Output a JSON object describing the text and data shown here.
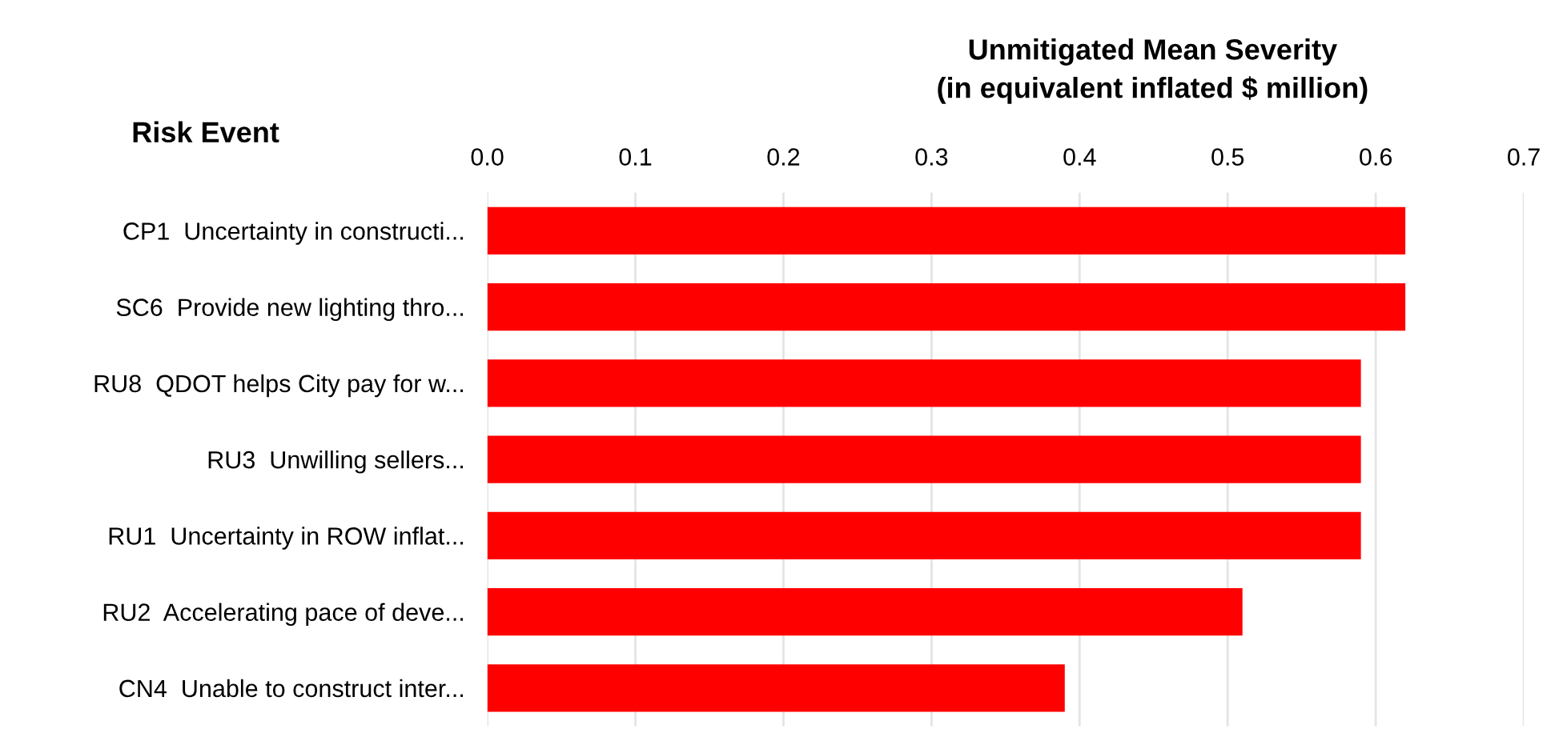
{
  "chart_data": {
    "type": "bar",
    "orientation": "horizontal",
    "xlabel": "Unmitigated Mean Severity\n(in equivalent inflated $ million)",
    "ylabel": "Risk Event",
    "categories": [
      "CP1  Uncertainty in constructi...",
      "SC6  Provide new lighting thro...",
      "RU8  QDOT helps City pay for w...",
      "RU3  Unwilling sellers...",
      "RU1  Uncertainty in ROW inflat...",
      "RU2  Accelerating pace of deve...",
      "CN4  Unable to construct inter..."
    ],
    "values": [
      0.62,
      0.62,
      0.59,
      0.59,
      0.59,
      0.51,
      0.39
    ],
    "color": "#ff0000",
    "xlim": [
      0,
      0.7
    ],
    "xticks": [
      "0.0",
      0.1,
      0.2,
      0.3,
      0.4,
      0.5,
      0.6,
      0.7
    ],
    "grid": "x"
  }
}
